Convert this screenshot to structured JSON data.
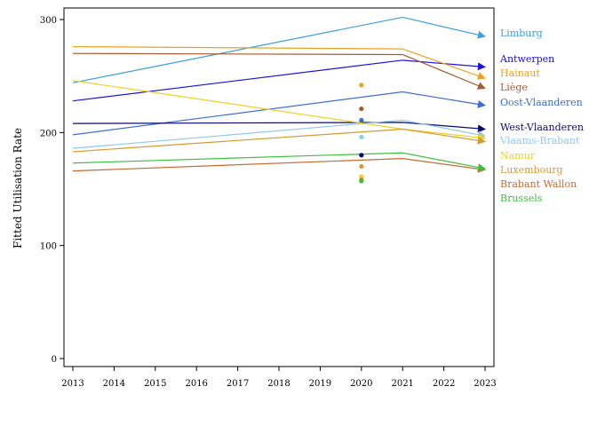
{
  "chart_data": {
    "type": "line",
    "title": "",
    "xlabel": "",
    "ylabel": "Fitted Utilisation Rate",
    "xlim": [
      2013,
      2023
    ],
    "ylim": [
      -5,
      310
    ],
    "x_ticks": [
      2013,
      2014,
      2015,
      2016,
      2017,
      2018,
      2019,
      2020,
      2021,
      2022,
      2023
    ],
    "y_ticks": [
      0,
      100,
      200,
      300
    ],
    "grid": false,
    "legend_placement": "right",
    "series": [
      {
        "name": "Limburg",
        "color": "#3a9ee0",
        "points": [
          [
            2013,
            244
          ],
          [
            2021,
            302
          ],
          [
            2023,
            285
          ]
        ],
        "marker_2020": null
      },
      {
        "name": "Antwerpen",
        "color": "#1a10e0",
        "points": [
          [
            2013,
            228
          ],
          [
            2021,
            264
          ],
          [
            2023,
            258
          ]
        ],
        "marker_2020": null
      },
      {
        "name": "Hainaut",
        "color": "#f0a020",
        "points": [
          [
            2013,
            276
          ],
          [
            2021,
            274
          ],
          [
            2023,
            248
          ]
        ],
        "marker_2020": 242
      },
      {
        "name": "Liège",
        "color": "#a85a30",
        "points": [
          [
            2013,
            270
          ],
          [
            2021,
            269
          ],
          [
            2023,
            239
          ]
        ],
        "marker_2020": 221
      },
      {
        "name": "Oost-Vlaanderen",
        "color": "#3a6ed8",
        "points": [
          [
            2013,
            198
          ],
          [
            2021,
            236
          ],
          [
            2023,
            224
          ]
        ],
        "marker_2020": 211
      },
      {
        "name": "West-Vlaanderen",
        "color": "#0a0a70",
        "points": [
          [
            2013,
            208
          ],
          [
            2021,
            209
          ],
          [
            2023,
            203
          ]
        ],
        "marker_2020": 180
      },
      {
        "name": "Vlaams-Brabant",
        "color": "#8ec8f0",
        "points": [
          [
            2013,
            186
          ],
          [
            2021,
            211
          ],
          [
            2023,
            197
          ]
        ],
        "marker_2020": 196
      },
      {
        "name": "Namur",
        "color": "#f0d020",
        "points": [
          [
            2013,
            246
          ],
          [
            2021,
            203
          ],
          [
            2023,
            195
          ]
        ],
        "marker_2020": 161
      },
      {
        "name": "Luxembourg",
        "color": "#d89a30",
        "points": [
          [
            2013,
            183
          ],
          [
            2021,
            203
          ],
          [
            2023,
            192
          ]
        ],
        "marker_2020": 170
      },
      {
        "name": "Brabant Wallon",
        "color": "#c86a30",
        "points": [
          [
            2013,
            166
          ],
          [
            2021,
            177
          ],
          [
            2023,
            167
          ]
        ],
        "marker_2020": 158
      },
      {
        "name": "Brussels",
        "color": "#40c040",
        "points": [
          [
            2013,
            173
          ],
          [
            2021,
            182
          ],
          [
            2023,
            168
          ]
        ],
        "marker_2020": 157
      }
    ]
  }
}
